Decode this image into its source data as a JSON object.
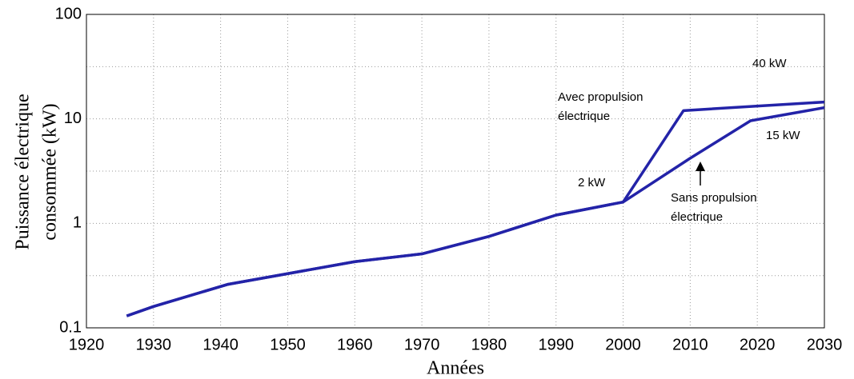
{
  "chart_data": {
    "type": "line",
    "xlabel": "Années",
    "ylabel": [
      "Puissance électrique",
      "consommée (kW)"
    ],
    "xlim": [
      1920,
      2030
    ],
    "xticks": [
      1920,
      1930,
      1940,
      1950,
      1960,
      1970,
      1980,
      1990,
      2000,
      2010,
      2020,
      2030
    ],
    "ylim": [
      0.1,
      100
    ],
    "yticks": [
      0.1,
      1,
      10,
      100
    ],
    "yminor_grid": [
      0.316,
      3.16,
      31.6
    ],
    "ylog": true,
    "grid": true,
    "series": [
      {
        "name": "Avec propulsion électrique",
        "color": "#2323a8",
        "x": [
          1926,
          1930,
          1941,
          1950,
          1960,
          1970,
          1980,
          1990,
          2000,
          2009,
          2030
        ],
        "values": [
          0.13,
          0.16,
          0.26,
          0.33,
          0.43,
          0.51,
          0.75,
          1.2,
          1.6,
          12,
          14.5
        ]
      },
      {
        "name": "Sans propulsion électrique",
        "color": "#2323a8",
        "x": [
          1926,
          1930,
          1941,
          1950,
          1960,
          1970,
          1980,
          1990,
          2000,
          2010,
          2019,
          2030
        ],
        "values": [
          0.13,
          0.16,
          0.26,
          0.33,
          0.43,
          0.51,
          0.75,
          1.2,
          1.6,
          4.2,
          9.6,
          12.8
        ]
      }
    ],
    "annotations": [
      {
        "text": [
          "Avec propulsion",
          "électrique"
        ]
      },
      {
        "text": [
          "Sans propulsion",
          "électrique"
        ]
      },
      {
        "text": [
          "40 kW"
        ]
      },
      {
        "text": [
          "15 kW"
        ]
      },
      {
        "text": [
          "2 kW"
        ]
      }
    ]
  }
}
